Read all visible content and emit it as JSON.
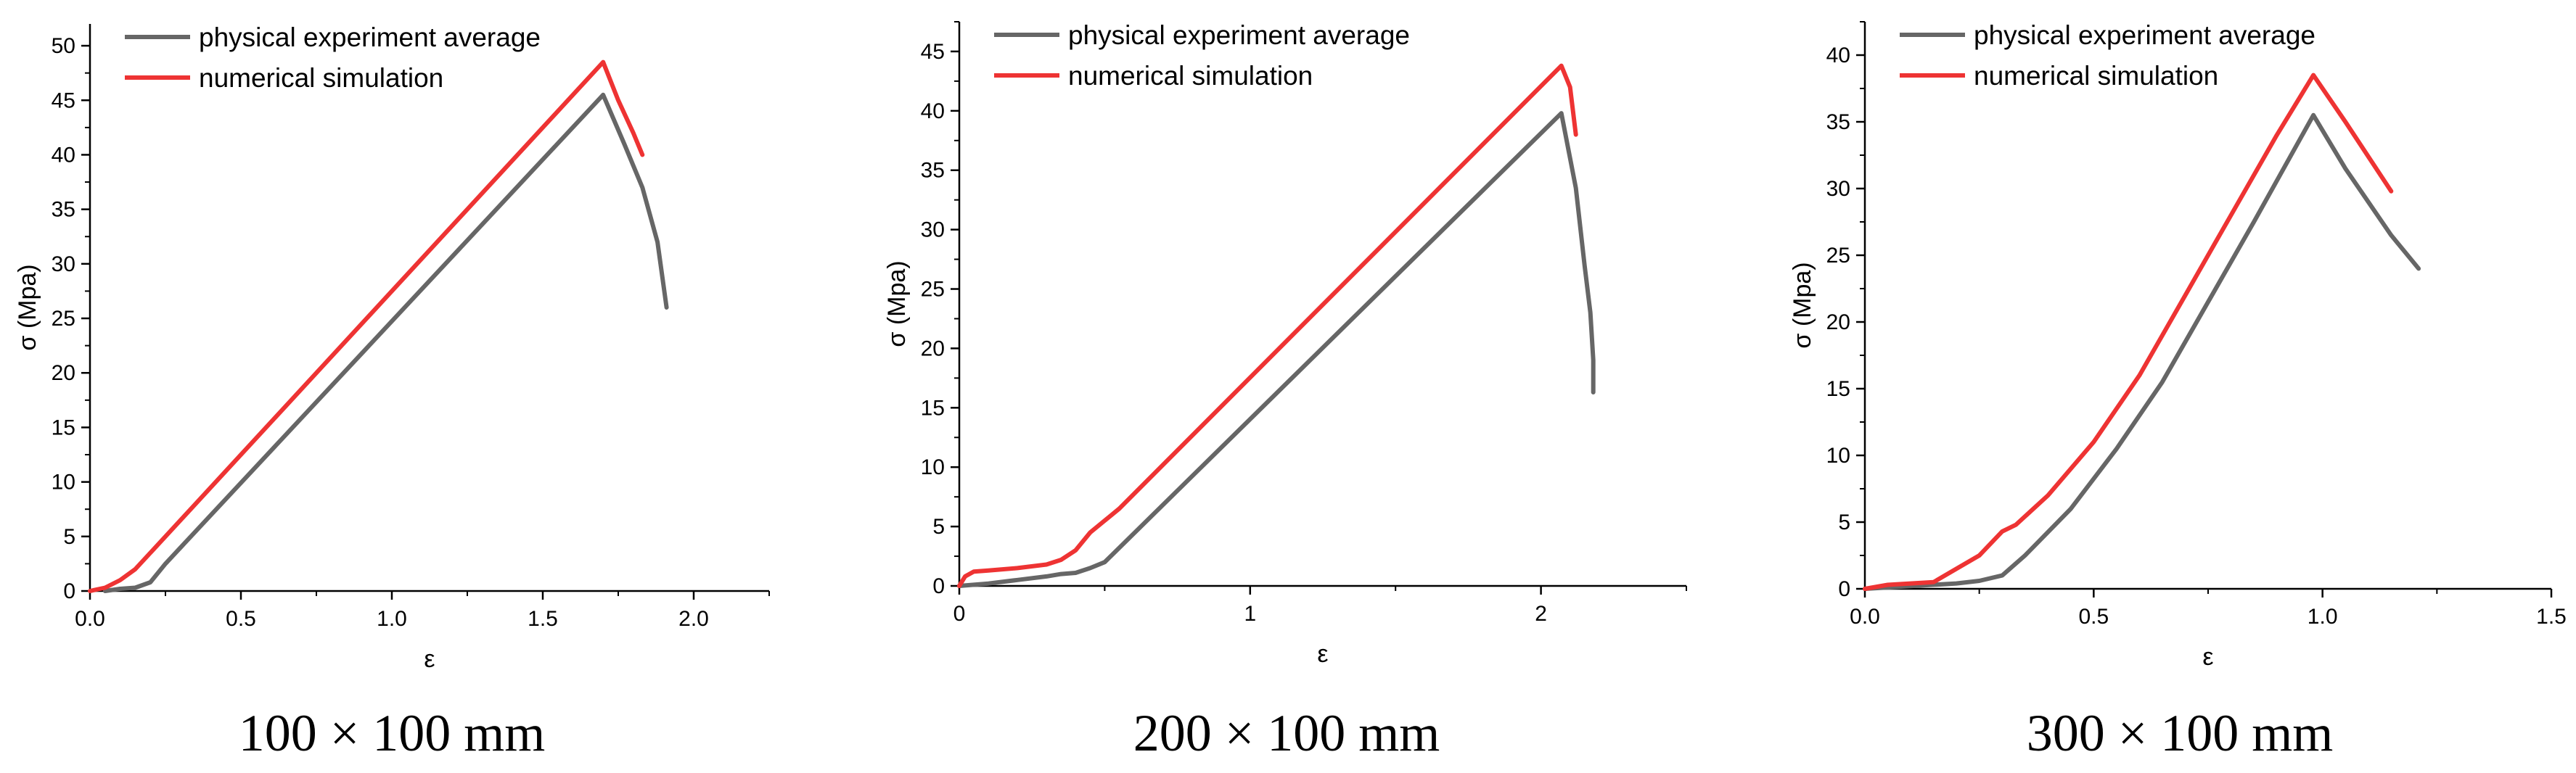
{
  "chart_data": [
    {
      "type": "line",
      "caption": "100 × 100 mm",
      "xlabel": "ε",
      "ylabel": "σ (Mpa)",
      "xlim": [
        0,
        2.25
      ],
      "ylim": [
        0,
        52
      ],
      "xticks": [
        0.0,
        0.5,
        1.0,
        1.5,
        2.0
      ],
      "xtick_labels": [
        "0.0",
        "0.5",
        "1.0",
        "1.5",
        "2.0"
      ],
      "xminor": 0.25,
      "yticks": [
        0,
        5,
        10,
        15,
        20,
        25,
        30,
        35,
        40,
        45,
        50
      ],
      "ytick_labels": [
        "0",
        "5",
        "10",
        "15",
        "20",
        "25",
        "30",
        "35",
        "40",
        "45",
        "50"
      ],
      "yminor": 2.5,
      "legend_position": "top-left",
      "series": [
        {
          "name": "physical experiment average",
          "color": "#666666",
          "points": [
            [
              0.05,
              0
            ],
            [
              0.1,
              0.2
            ],
            [
              0.15,
              0.3
            ],
            [
              0.2,
              0.8
            ],
            [
              0.25,
              2.5
            ],
            [
              1.7,
              45.5
            ],
            [
              1.77,
              41
            ],
            [
              1.83,
              37
            ],
            [
              1.88,
              32
            ],
            [
              1.91,
              26
            ]
          ]
        },
        {
          "name": "numerical simulation",
          "color": "#ee3333",
          "points": [
            [
              0,
              0
            ],
            [
              0.05,
              0.3
            ],
            [
              0.1,
              1
            ],
            [
              0.15,
              2
            ],
            [
              0.2,
              3.5
            ],
            [
              1.7,
              48.5
            ],
            [
              1.75,
              45
            ],
            [
              1.8,
              42
            ],
            [
              1.83,
              40
            ]
          ]
        }
      ]
    },
    {
      "type": "line",
      "caption": "200 × 100 mm",
      "xlabel": "ε",
      "ylabel": "σ (Mpa)",
      "xlim": [
        0,
        2.5
      ],
      "ylim": [
        0,
        47.5
      ],
      "xticks": [
        0,
        1,
        2
      ],
      "xtick_labels": [
        "0",
        "1",
        "2"
      ],
      "xminor": 0.5,
      "yticks": [
        0,
        5,
        10,
        15,
        20,
        25,
        30,
        35,
        40,
        45
      ],
      "ytick_labels": [
        "0",
        "5",
        "10",
        "15",
        "20",
        "25",
        "30",
        "35",
        "40",
        "45"
      ],
      "yminor": 2.5,
      "legend_position": "top-left",
      "series": [
        {
          "name": "physical experiment average",
          "color": "#666666",
          "points": [
            [
              0,
              0
            ],
            [
              0.1,
              0.2
            ],
            [
              0.2,
              0.5
            ],
            [
              0.3,
              0.8
            ],
            [
              0.35,
              1
            ],
            [
              0.4,
              1.1
            ],
            [
              0.45,
              1.5
            ],
            [
              0.5,
              2
            ],
            [
              2.07,
              39.8
            ],
            [
              2.12,
              33.5
            ],
            [
              2.15,
              27
            ],
            [
              2.17,
              23
            ],
            [
              2.18,
              19
            ],
            [
              2.18,
              16.3
            ]
          ]
        },
        {
          "name": "numerical simulation",
          "color": "#ee3333",
          "points": [
            [
              0,
              0
            ],
            [
              0.02,
              0.8
            ],
            [
              0.05,
              1.2
            ],
            [
              0.1,
              1.3
            ],
            [
              0.2,
              1.5
            ],
            [
              0.3,
              1.8
            ],
            [
              0.35,
              2.2
            ],
            [
              0.4,
              3
            ],
            [
              0.45,
              4.5
            ],
            [
              0.55,
              6.5
            ],
            [
              2.07,
              43.8
            ],
            [
              2.1,
              42
            ],
            [
              2.12,
              38
            ]
          ]
        }
      ]
    },
    {
      "type": "line",
      "caption": "300 × 100 mm",
      "xlabel": "ε",
      "ylabel": "σ (Mpa)",
      "xlim": [
        0,
        1.5
      ],
      "ylim": [
        0,
        42.5
      ],
      "xticks": [
        0.0,
        0.5,
        1.0,
        1.5
      ],
      "xtick_labels": [
        "0.0",
        "0.5",
        "1.0",
        "1.5"
      ],
      "xminor": 0.25,
      "yticks": [
        0,
        5,
        10,
        15,
        20,
        25,
        30,
        35,
        40
      ],
      "ytick_labels": [
        "0",
        "5",
        "10",
        "15",
        "20",
        "25",
        "30",
        "35",
        "40"
      ],
      "yminor": 2.5,
      "legend_position": "top-left",
      "series": [
        {
          "name": "physical experiment average",
          "color": "#666666",
          "points": [
            [
              0,
              0
            ],
            [
              0.1,
              0.2
            ],
            [
              0.2,
              0.4
            ],
            [
              0.25,
              0.6
            ],
            [
              0.3,
              1
            ],
            [
              0.35,
              2.5
            ],
            [
              0.45,
              6
            ],
            [
              0.55,
              10.5
            ],
            [
              0.65,
              15.5
            ],
            [
              0.75,
              21.5
            ],
            [
              0.85,
              27.5
            ],
            [
              0.98,
              35.5
            ],
            [
              1.05,
              31.5
            ],
            [
              1.15,
              26.5
            ],
            [
              1.21,
              24
            ]
          ]
        },
        {
          "name": "numerical simulation",
          "color": "#ee3333",
          "points": [
            [
              0,
              0
            ],
            [
              0.05,
              0.3
            ],
            [
              0.1,
              0.4
            ],
            [
              0.15,
              0.5
            ],
            [
              0.2,
              1.5
            ],
            [
              0.25,
              2.5
            ],
            [
              0.3,
              4.3
            ],
            [
              0.33,
              4.8
            ],
            [
              0.4,
              7
            ],
            [
              0.5,
              11
            ],
            [
              0.6,
              16
            ],
            [
              0.7,
              22
            ],
            [
              0.8,
              28
            ],
            [
              0.9,
              34
            ],
            [
              0.98,
              38.5
            ],
            [
              1.05,
              35
            ],
            [
              1.15,
              29.8
            ]
          ]
        }
      ]
    }
  ]
}
